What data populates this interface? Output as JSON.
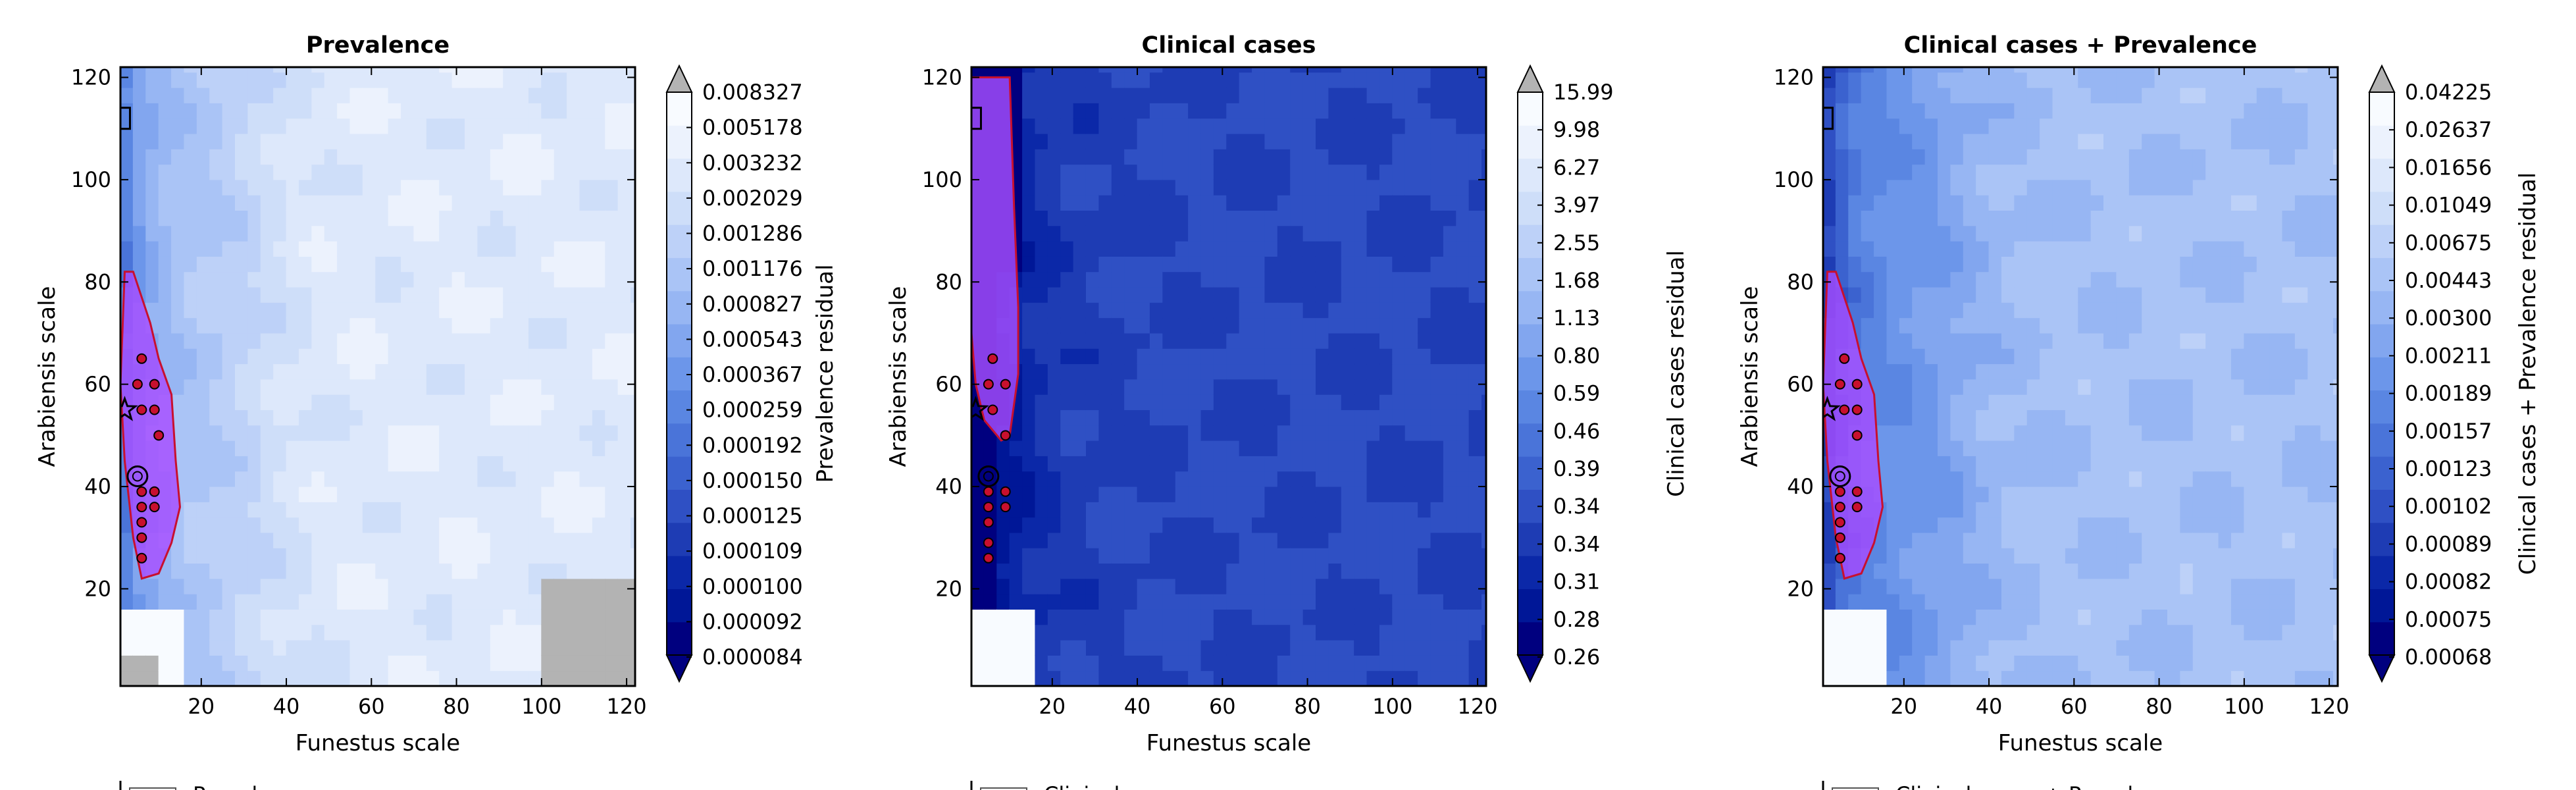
{
  "figure": {
    "legend_snippets": [
      "Prevalence",
      "Clinical",
      "Clinical cases + Prevalence"
    ],
    "scale_colors": [
      "#00007f",
      "#001797",
      "#0b28a8",
      "#1e3cb4",
      "#2f50c4",
      "#3b62cf",
      "#4a74d9",
      "#5a86e2",
      "#6c96ea",
      "#82a6ef",
      "#97b6f3",
      "#aac4f6",
      "#bdd1f8",
      "#cedef9",
      "#dde8fb",
      "#ecf2fd",
      "#f8fbff"
    ],
    "over_color": "#b3b3b3",
    "sweet_spot_color": "#a64dff",
    "sweet_spot_edge": "#c8102e"
  },
  "chart_data": [
    {
      "type": "heatmap",
      "title": "Prevalence",
      "xlabel": "Funestus scale",
      "ylabel": "Arabiensis scale",
      "xlim": [
        1,
        122
      ],
      "ylim": [
        1,
        122
      ],
      "xticks": [
        20,
        40,
        60,
        80,
        100,
        120
      ],
      "yticks": [
        20,
        40,
        60,
        80,
        100,
        120
      ],
      "colorbar_label": "Prevalence residual",
      "colorbar_ticks": [
        "0.008327",
        "0.005178",
        "0.003232",
        "0.002029",
        "0.001286",
        "0.001176",
        "0.000827",
        "0.000543",
        "0.000367",
        "0.000259",
        "0.000192",
        "0.000150",
        "0.000125",
        "0.000109",
        "0.000100",
        "0.000092",
        "0.000084"
      ],
      "legend_label": "Prevalence",
      "points": [
        [
          6,
          65
        ],
        [
          5,
          60
        ],
        [
          9,
          60
        ],
        [
          6,
          55
        ],
        [
          9,
          55
        ],
        [
          10,
          50
        ],
        [
          6,
          39
        ],
        [
          9,
          39
        ],
        [
          6,
          36
        ],
        [
          9,
          36
        ],
        [
          6,
          33
        ],
        [
          6,
          30
        ],
        [
          6,
          26
        ]
      ],
      "circle_marker": [
        5,
        42
      ],
      "star_marker": [
        2,
        55
      ],
      "square_marker": [
        2,
        112
      ]
    },
    {
      "type": "heatmap",
      "title": "Clinical cases",
      "xlabel": "Funestus scale",
      "ylabel": "Arabiensis scale",
      "xlim": [
        1,
        122
      ],
      "ylim": [
        1,
        122
      ],
      "xticks": [
        20,
        40,
        60,
        80,
        100,
        120
      ],
      "yticks": [
        20,
        40,
        60,
        80,
        100,
        120
      ],
      "colorbar_label": "Clinical cases residual",
      "colorbar_ticks": [
        "15.99",
        "9.98",
        "6.27",
        "3.97",
        "2.55",
        "1.68",
        "1.13",
        "0.80",
        "0.59",
        "0.46",
        "0.39",
        "0.34",
        "0.34",
        "0.31",
        "0.28",
        "0.26"
      ],
      "legend_label": "Clinical",
      "points": [
        [
          6,
          65
        ],
        [
          5,
          60
        ],
        [
          9,
          60
        ],
        [
          6,
          55
        ],
        [
          9,
          50
        ],
        [
          5,
          39
        ],
        [
          9,
          39
        ],
        [
          5,
          36
        ],
        [
          9,
          36
        ],
        [
          5,
          33
        ],
        [
          5,
          29
        ],
        [
          5,
          26
        ]
      ],
      "circle_marker": [
        5,
        42
      ],
      "star_marker": [
        2,
        55
      ],
      "square_marker": [
        2,
        112
      ]
    },
    {
      "type": "heatmap",
      "title": "Clinical cases + Prevalence",
      "xlabel": "Funestus scale",
      "ylabel": "Arabiensis scale",
      "xlim": [
        1,
        122
      ],
      "ylim": [
        1,
        122
      ],
      "xticks": [
        20,
        40,
        60,
        80,
        100,
        120
      ],
      "yticks": [
        20,
        40,
        60,
        80,
        100,
        120
      ],
      "colorbar_label": "Clinical cases + Prevalence residual",
      "colorbar_ticks": [
        "0.04225",
        "0.02637",
        "0.01656",
        "0.01049",
        "0.00675",
        "0.00443",
        "0.00300",
        "0.00211",
        "0.00189",
        "0.00157",
        "0.00123",
        "0.00102",
        "0.00089",
        "0.00082",
        "0.00075",
        "0.00068"
      ],
      "legend_label": "Clinical cases + Prevalence",
      "points": [
        [
          6,
          65
        ],
        [
          5,
          60
        ],
        [
          9,
          60
        ],
        [
          6,
          55
        ],
        [
          9,
          55
        ],
        [
          9,
          50
        ],
        [
          5,
          39
        ],
        [
          9,
          39
        ],
        [
          5,
          36
        ],
        [
          9,
          36
        ],
        [
          5,
          33
        ],
        [
          5,
          30
        ],
        [
          5,
          26
        ]
      ],
      "circle_marker": [
        5,
        42
      ],
      "star_marker": [
        2,
        55
      ],
      "square_marker": [
        2,
        112
      ]
    }
  ]
}
